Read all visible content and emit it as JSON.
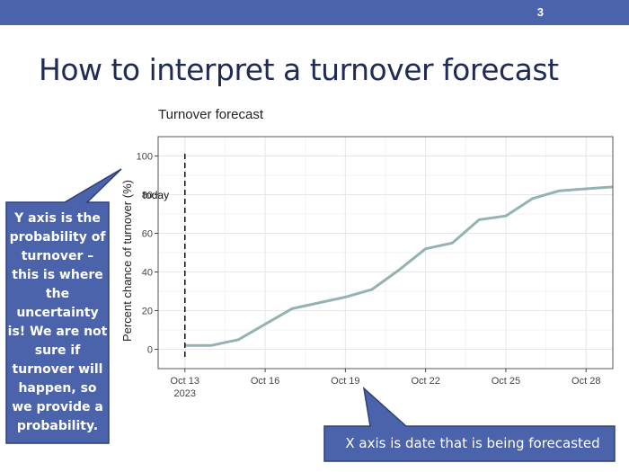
{
  "slide": {
    "number": "3",
    "title": "How to interpret a turnover forecast",
    "callouts": {
      "y_axis": "Y axis is the probability of turnover – this is where the uncertainty is! We are not sure if turnover will happen, so we provide a probability.",
      "x_axis": "X axis is date that is being forecasted"
    },
    "colors": {
      "header_bar": "#4a63ab",
      "callout_fill": "#4a63ab",
      "title_text": "#1f2a57",
      "line": "#93b3b3"
    }
  },
  "chart_data": {
    "type": "line",
    "title": "Turnover forecast",
    "xlabel": "",
    "ylabel": "Percent chance of turnover (%)",
    "ylim": [
      -10,
      110
    ],
    "xlim": [
      "2023-10-12",
      "2023-10-29"
    ],
    "yticks": [
      0,
      20,
      40,
      60,
      80,
      100
    ],
    "xticks": [
      {
        "date": "2023-10-13",
        "label": "Oct 13",
        "sublabel": "2023"
      },
      {
        "date": "2023-10-16",
        "label": "Oct 16"
      },
      {
        "date": "2023-10-19",
        "label": "Oct 19"
      },
      {
        "date": "2023-10-22",
        "label": "Oct 22"
      },
      {
        "date": "2023-10-25",
        "label": "Oct 25"
      },
      {
        "date": "2023-10-28",
        "label": "Oct 28"
      }
    ],
    "grid": true,
    "series": [
      {
        "color": "#93b3b3",
        "points": [
          {
            "x": "2023-10-13",
            "y": 2
          },
          {
            "x": "2023-10-14",
            "y": 2
          },
          {
            "x": "2023-10-15",
            "y": 5
          },
          {
            "x": "2023-10-16",
            "y": 13
          },
          {
            "x": "2023-10-17",
            "y": 21
          },
          {
            "x": "2023-10-18",
            "y": 24
          },
          {
            "x": "2023-10-19",
            "y": 27
          },
          {
            "x": "2023-10-20",
            "y": 31
          },
          {
            "x": "2023-10-21",
            "y": 41
          },
          {
            "x": "2023-10-22",
            "y": 52
          },
          {
            "x": "2023-10-23",
            "y": 55
          },
          {
            "x": "2023-10-24",
            "y": 67
          },
          {
            "x": "2023-10-25",
            "y": 69
          },
          {
            "x": "2023-10-26",
            "y": 78
          },
          {
            "x": "2023-10-27",
            "y": 82
          },
          {
            "x": "2023-10-28",
            "y": 83
          },
          {
            "x": "2023-10-29",
            "y": 84
          }
        ]
      }
    ],
    "annotations": [
      {
        "type": "vline",
        "x": "2023-10-13",
        "style": "dashed",
        "label": "today"
      }
    ]
  }
}
